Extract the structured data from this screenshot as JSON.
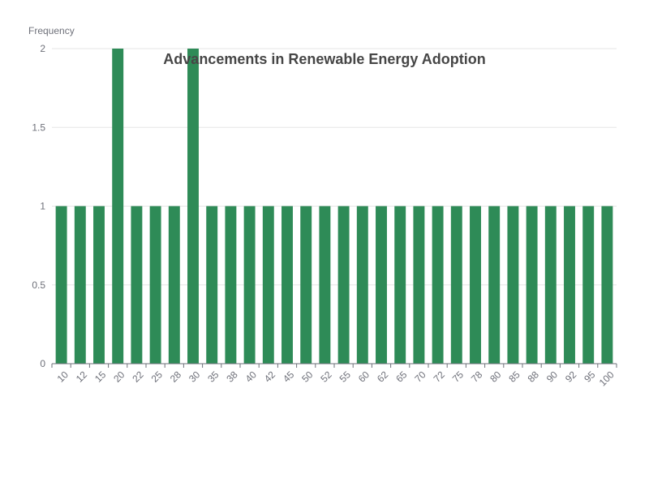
{
  "chart_data": {
    "type": "bar",
    "title": "Advancements in Renewable Energy Adoption",
    "ylabel": "Frequency",
    "xlabel": "",
    "categories": [
      "10",
      "12",
      "15",
      "20",
      "22",
      "25",
      "28",
      "30",
      "35",
      "38",
      "40",
      "42",
      "45",
      "50",
      "52",
      "55",
      "60",
      "62",
      "65",
      "70",
      "72",
      "75",
      "78",
      "80",
      "85",
      "88",
      "90",
      "92",
      "95",
      "100"
    ],
    "values": [
      1,
      1,
      1,
      2,
      1,
      1,
      1,
      2,
      1,
      1,
      1,
      1,
      1,
      1,
      1,
      1,
      1,
      1,
      1,
      1,
      1,
      1,
      1,
      1,
      1,
      1,
      1,
      1,
      1,
      1
    ],
    "ylim": [
      0,
      2
    ],
    "yticks": [
      "0",
      "0.5",
      "1",
      "1.5",
      "2"
    ],
    "grid": true,
    "colors": {
      "bar": "#2e8b57",
      "grid": "#e6e6e6",
      "axis": "#6e7079"
    }
  }
}
